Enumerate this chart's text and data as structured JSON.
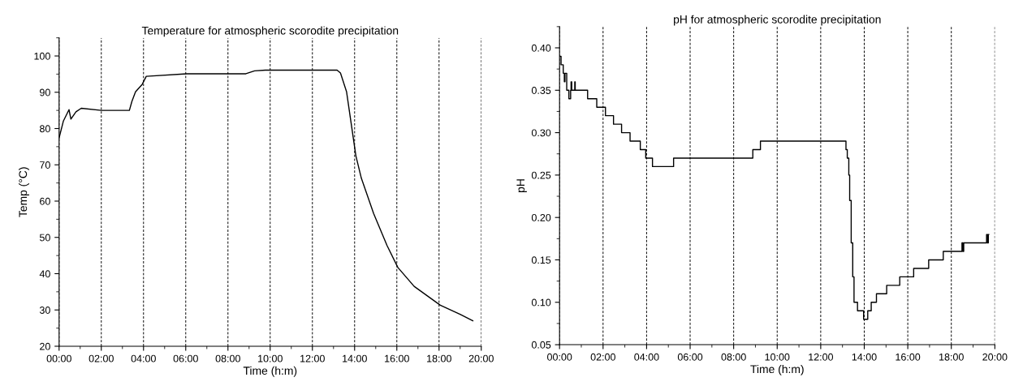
{
  "chart_data": [
    {
      "type": "line",
      "title": "Temperature for atmospheric scorodite precipitation",
      "xlabel": "Time (h:m)",
      "ylabel": "Temp (°C)",
      "series": [
        {
          "color": "#000000",
          "x": [
            0,
            0.2,
            0.47,
            0.56,
            0.8,
            1.05,
            2.0,
            3.33,
            3.45,
            3.62,
            3.94,
            4.13,
            6.05,
            8.85,
            9.26,
            9.77,
            13.17,
            13.33,
            13.62,
            14.06,
            14.32,
            14.9,
            15.54,
            16.05,
            16.82,
            18.06,
            19.0,
            19.6
          ],
          "values": [
            77.4,
            82.0,
            85.2,
            82.6,
            84.6,
            85.6,
            85.0,
            85.0,
            87.5,
            90.1,
            92.2,
            94.4,
            95.1,
            95.1,
            95.9,
            96.1,
            96.1,
            95.3,
            90.1,
            72.5,
            66.3,
            56.6,
            47.7,
            41.7,
            36.5,
            31.3,
            28.8,
            27.0
          ]
        }
      ],
      "xlim": [
        0,
        20
      ],
      "xticks": [
        {
          "value": 0,
          "label": "00:00"
        },
        {
          "value": 2,
          "label": "02:00"
        },
        {
          "value": 4,
          "label": "04:00"
        },
        {
          "value": 6,
          "label": "06:00"
        },
        {
          "value": 8,
          "label": "08:00"
        },
        {
          "value": 10,
          "label": "10:00"
        },
        {
          "value": 12,
          "label": "12:00"
        },
        {
          "value": 14,
          "label": "14:00"
        },
        {
          "value": 16,
          "label": "16:00"
        },
        {
          "value": 18,
          "label": "18:00"
        },
        {
          "value": 20,
          "label": "20:00"
        }
      ],
      "ylim": [
        20,
        105
      ],
      "yticks": [
        20,
        30,
        40,
        50,
        60,
        70,
        80,
        90,
        100
      ],
      "grid": "x",
      "legend": false
    },
    {
      "type": "step",
      "title": "pH for atmospheric scorodite precipitation",
      "xlabel": "Time (h:m)",
      "ylabel": "pH",
      "series": [
        {
          "color": "#000000",
          "x": [
            0,
            0.07,
            0.17,
            0.22,
            0.25,
            0.33,
            0.43,
            0.51,
            0.53,
            0.56,
            0.7,
            0.72,
            1.29,
            1.71,
            2.11,
            2.48,
            2.85,
            3.24,
            3.71,
            3.96,
            4.27,
            5.24,
            8.88,
            9.23,
            13.16,
            13.22,
            13.29,
            13.33,
            13.4,
            13.47,
            13.53,
            13.69,
            13.97,
            14.16,
            14.32,
            14.56,
            15.03,
            15.63,
            16.27,
            16.96,
            17.63,
            18.49,
            18.53,
            18.57,
            19.62,
            19.66,
            19.7,
            19.72
          ],
          "values": [
            0.39,
            0.38,
            0.37,
            0.36,
            0.37,
            0.35,
            0.34,
            0.35,
            0.36,
            0.35,
            0.36,
            0.35,
            0.34,
            0.33,
            0.32,
            0.31,
            0.3,
            0.29,
            0.28,
            0.27,
            0.26,
            0.27,
            0.28,
            0.29,
            0.28,
            0.27,
            0.25,
            0.22,
            0.17,
            0.13,
            0.1,
            0.09,
            0.08,
            0.09,
            0.1,
            0.11,
            0.12,
            0.13,
            0.14,
            0.15,
            0.16,
            0.17,
            0.16,
            0.17,
            0.18,
            0.17,
            0.18,
            0.18
          ]
        }
      ],
      "xlim": [
        0,
        20
      ],
      "xticks": [
        {
          "value": 0,
          "label": "00:00"
        },
        {
          "value": 2,
          "label": "02:00"
        },
        {
          "value": 4,
          "label": "04:00"
        },
        {
          "value": 6,
          "label": "06:00"
        },
        {
          "value": 8,
          "label": "08:00"
        },
        {
          "value": 10,
          "label": "10:00"
        },
        {
          "value": 12,
          "label": "12:00"
        },
        {
          "value": 14,
          "label": "14:00"
        },
        {
          "value": 16,
          "label": "16:00"
        },
        {
          "value": 18,
          "label": "18:00"
        },
        {
          "value": 20,
          "label": "20:00"
        }
      ],
      "ylim": [
        0.05,
        0.425
      ],
      "yticks": [
        {
          "value": 0.05,
          "label": "0.05"
        },
        {
          "value": 0.1,
          "label": "0.10"
        },
        {
          "value": 0.15,
          "label": "0.15"
        },
        {
          "value": 0.2,
          "label": "0.20"
        },
        {
          "value": 0.25,
          "label": "0.25"
        },
        {
          "value": 0.3,
          "label": "0.30"
        },
        {
          "value": 0.35,
          "label": "0.35"
        },
        {
          "value": 0.4,
          "label": "0.40"
        }
      ],
      "grid": "x",
      "legend": false
    }
  ]
}
